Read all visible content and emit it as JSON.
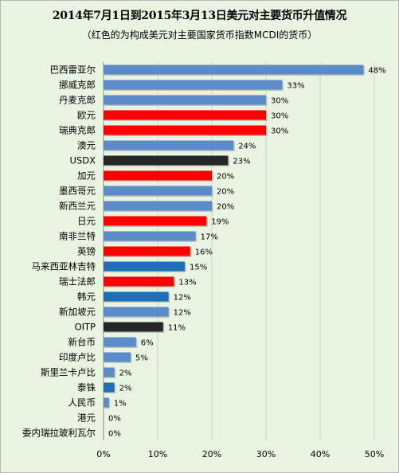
{
  "chart_data": {
    "type": "bar",
    "orientation": "horizontal",
    "title": "2014年7月1日到2015年3月13日美元对主要货币升值情况",
    "subtitle": "（红色的为构成美元对主要国家货币指数MCDI的货币）",
    "xlim": [
      0,
      50
    ],
    "x_ticks": [
      "0%",
      "10%",
      "20%",
      "30%",
      "40%",
      "50%"
    ],
    "grid": true,
    "categories": [
      "巴西雷亚尔",
      "挪威克郎",
      "丹麦克郎",
      "欧元",
      "瑞典克郎",
      "澳元",
      "USDX",
      "加元",
      "墨西哥元",
      "新西兰元",
      "日元",
      "南非兰特",
      "英镑",
      "马来西亚林吉特",
      "瑞士法郎",
      "韩元",
      "新加坡元",
      "OITP",
      "新台币",
      "印度卢比",
      "斯里兰卡卢比",
      "泰铢",
      "人民币",
      "港元",
      "委内瑞拉玻利瓦尔"
    ],
    "values": [
      48,
      33,
      30,
      30,
      30,
      24,
      23,
      20,
      20,
      20,
      19,
      17,
      16,
      15,
      13,
      12,
      12,
      11,
      6,
      5,
      2,
      2,
      1,
      0,
      0
    ],
    "value_labels": [
      "48%",
      "33%",
      "30%",
      "30%",
      "30%",
      "24%",
      "23%",
      "20%",
      "20%",
      "20%",
      "19%",
      "17%",
      "16%",
      "15%",
      "13%",
      "12%",
      "12%",
      "11%",
      "6%",
      "5%",
      "2%",
      "2%",
      "1%",
      "0%",
      "0%"
    ],
    "colors": [
      "#5b8bc8",
      "#5b8bc8",
      "#5b8bc8",
      "#ff0000",
      "#ff0000",
      "#5b8bc8",
      "#262626",
      "#ff0000",
      "#5b8bc8",
      "#5b8bc8",
      "#ff0000",
      "#5b8bc8",
      "#ff0000",
      "#1f6fb8",
      "#ff0000",
      "#1f6fb8",
      "#5b8bc8",
      "#262626",
      "#5b8bc8",
      "#5b8bc8",
      "#5b8bc8",
      "#1f6fb8",
      "#5b8bc8",
      "#5b8bc8",
      "#5b8bc8"
    ]
  },
  "theme": {
    "background": "#eaf4e2",
    "gridline": "#cfcfcf"
  }
}
